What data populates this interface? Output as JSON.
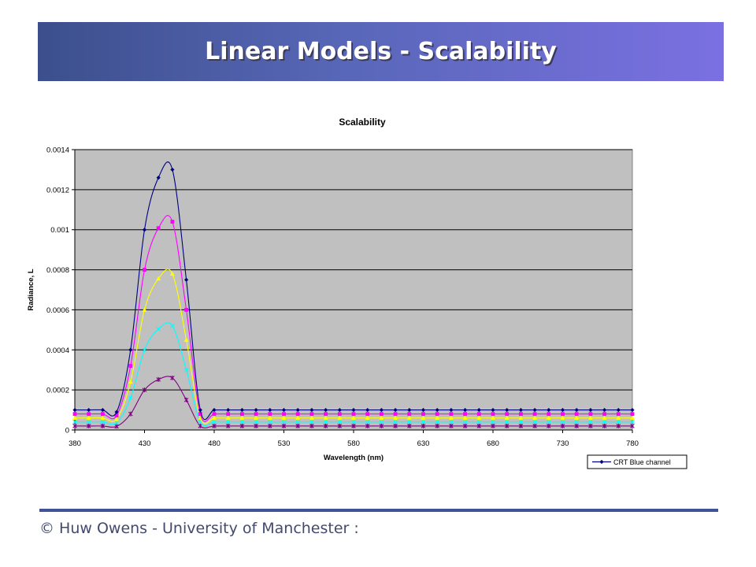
{
  "slide": {
    "title": "Linear Models - Scalability",
    "footer": "© Huw Owens - University of Manchester :"
  },
  "chart_data": {
    "type": "line",
    "title": "Scalability",
    "xlabel": "Wavelength (nm)",
    "ylabel": "Radiance, L",
    "xlim": [
      380,
      780
    ],
    "ylim": [
      0,
      0.0014
    ],
    "xticks": [
      380,
      430,
      480,
      530,
      580,
      630,
      680,
      730,
      780
    ],
    "yticks": [
      0,
      0.0002,
      0.0004,
      0.0006,
      0.0008,
      0.001,
      0.0012,
      0.0014
    ],
    "ytick_labels": [
      "0",
      "0.0002",
      "0.0004",
      "0.0006",
      "0.0008",
      "0.001",
      "0.0012",
      "0.0014"
    ],
    "grid": "horizontal",
    "plot_background": "#c0c0c0",
    "legend_position": "bottom-right",
    "x": [
      380,
      390,
      400,
      410,
      420,
      430,
      440,
      450,
      460,
      470,
      480,
      490,
      500,
      510,
      520,
      530,
      540,
      550,
      560,
      570,
      580,
      590,
      600,
      610,
      620,
      630,
      640,
      650,
      660,
      670,
      680,
      690,
      700,
      710,
      720,
      730,
      740,
      750,
      760,
      770,
      780
    ],
    "series": [
      {
        "name": "CRT Blue channel",
        "color": "#000080",
        "marker": "diamond",
        "values": [
          0.0001,
          0.0001,
          0.0001,
          9e-05,
          0.0004,
          0.001,
          0.00126,
          0.0013,
          0.00075,
          0.0001,
          0.0001,
          0.0001,
          0.0001,
          0.0001,
          0.0001,
          0.0001,
          0.0001,
          0.0001,
          0.0001,
          0.0001,
          0.0001,
          0.0001,
          0.0001,
          0.0001,
          0.0001,
          0.0001,
          0.0001,
          0.0001,
          0.0001,
          0.0001,
          0.0001,
          0.0001,
          0.0001,
          0.0001,
          0.0001,
          0.0001,
          0.0001,
          0.0001,
          0.0001,
          0.0001,
          0.0001
        ]
      },
      {
        "color": "#ff00ff",
        "marker": "square",
        "values": [
          8e-05,
          8e-05,
          8e-05,
          7.2e-05,
          0.00032,
          0.0008,
          0.001008,
          0.00104,
          0.0006,
          8e-05,
          8e-05,
          8e-05,
          8e-05,
          8e-05,
          8e-05,
          8e-05,
          8e-05,
          8e-05,
          8e-05,
          8e-05,
          8e-05,
          8e-05,
          8e-05,
          8e-05,
          8e-05,
          8e-05,
          8e-05,
          8e-05,
          8e-05,
          8e-05,
          8e-05,
          8e-05,
          8e-05,
          8e-05,
          8e-05,
          8e-05,
          8e-05,
          8e-05,
          8e-05,
          8e-05,
          8e-05
        ]
      },
      {
        "color": "#ffff00",
        "marker": "triangle",
        "values": [
          6e-05,
          6e-05,
          6e-05,
          5.4e-05,
          0.00024,
          0.0006,
          0.000756,
          0.00078,
          0.00045,
          6e-05,
          6e-05,
          6e-05,
          6e-05,
          6e-05,
          6e-05,
          6e-05,
          6e-05,
          6e-05,
          6e-05,
          6e-05,
          6e-05,
          6e-05,
          6e-05,
          6e-05,
          6e-05,
          6e-05,
          6e-05,
          6e-05,
          6e-05,
          6e-05,
          6e-05,
          6e-05,
          6e-05,
          6e-05,
          6e-05,
          6e-05,
          6e-05,
          6e-05,
          6e-05,
          6e-05,
          6e-05
        ]
      },
      {
        "color": "#00ffff",
        "marker": "x",
        "values": [
          4e-05,
          4e-05,
          4e-05,
          3.6e-05,
          0.00016,
          0.0004,
          0.000504,
          0.00052,
          0.0003,
          4e-05,
          4e-05,
          4e-05,
          4e-05,
          4e-05,
          4e-05,
          4e-05,
          4e-05,
          4e-05,
          4e-05,
          4e-05,
          4e-05,
          4e-05,
          4e-05,
          4e-05,
          4e-05,
          4e-05,
          4e-05,
          4e-05,
          4e-05,
          4e-05,
          4e-05,
          4e-05,
          4e-05,
          4e-05,
          4e-05,
          4e-05,
          4e-05,
          4e-05,
          4e-05,
          4e-05,
          4e-05
        ]
      },
      {
        "color": "#800080",
        "marker": "star",
        "values": [
          2e-05,
          2e-05,
          2e-05,
          1.8e-05,
          8e-05,
          0.0002,
          0.000252,
          0.00026,
          0.00015,
          2e-05,
          2e-05,
          2e-05,
          2e-05,
          2e-05,
          2e-05,
          2e-05,
          2e-05,
          2e-05,
          2e-05,
          2e-05,
          2e-05,
          2e-05,
          2e-05,
          2e-05,
          2e-05,
          2e-05,
          2e-05,
          2e-05,
          2e-05,
          2e-05,
          2e-05,
          2e-05,
          2e-05,
          2e-05,
          2e-05,
          2e-05,
          2e-05,
          2e-05,
          2e-05,
          2e-05,
          2e-05
        ]
      }
    ]
  }
}
